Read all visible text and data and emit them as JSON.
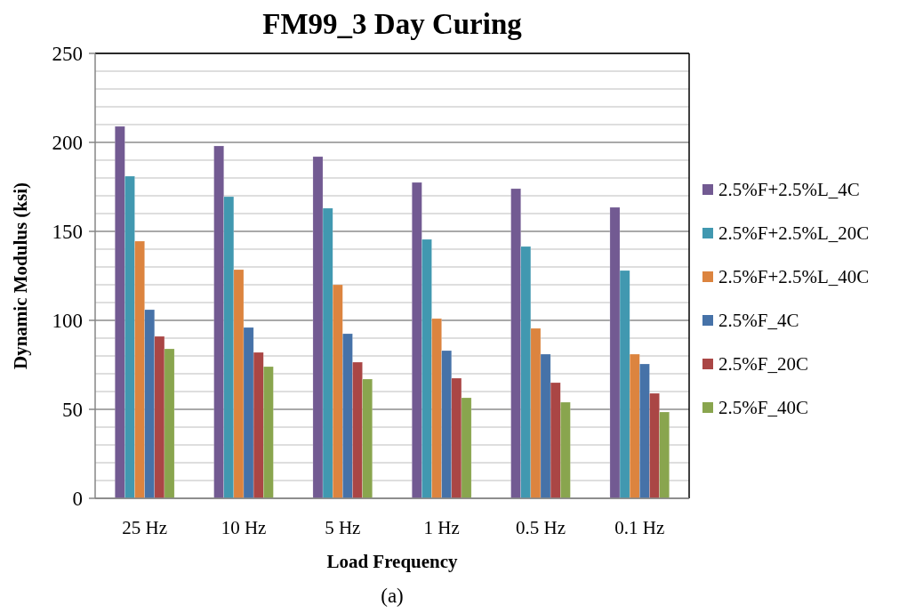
{
  "chart_data": {
    "type": "bar",
    "title": "FM99_3 Day Curing",
    "xlabel": "Load Frequency",
    "ylabel": "Dynamic Modulus (ksi)",
    "annotations": [
      "(a)"
    ],
    "categories": [
      "25 Hz",
      "10 Hz",
      "5 Hz",
      "1 Hz",
      "0.5 Hz",
      "0.1 Hz"
    ],
    "series": [
      {
        "name": "2.5%F+2.5%L_4C",
        "color": "#725a92",
        "values": [
          209,
          198,
          192,
          177.5,
          174,
          163.5
        ]
      },
      {
        "name": "2.5%F+2.5%L_20C",
        "color": "#4198b0",
        "values": [
          181,
          169.5,
          163,
          145.5,
          141.5,
          128
        ]
      },
      {
        "name": "2.5%F+2.5%L_40C",
        "color": "#dc843f",
        "values": [
          144.5,
          128.5,
          120,
          101,
          95.5,
          81
        ]
      },
      {
        "name": "2.5%F_4C",
        "color": "#4672a8",
        "values": [
          106,
          96,
          92.5,
          83,
          81,
          75.5
        ]
      },
      {
        "name": "2.5%F_20C",
        "color": "#aa4645",
        "values": [
          91,
          82,
          76.5,
          67.5,
          65,
          59
        ]
      },
      {
        "name": "2.5%F_40C",
        "color": "#89a54e",
        "values": [
          84,
          74,
          67,
          56.5,
          54,
          48.5
        ]
      }
    ],
    "ylim": [
      0,
      250
    ],
    "yticks": [
      0,
      {
        "value": 10,
        "label": null
      },
      {
        "value": 20,
        "label": null
      },
      {
        "value": 30,
        "label": null
      },
      {
        "value": 40,
        "label": null
      },
      50,
      {
        "value": 60,
        "label": null
      },
      {
        "value": 70,
        "label": null
      },
      {
        "value": 80,
        "label": null
      },
      {
        "value": 90,
        "label": null
      },
      100,
      {
        "value": 110,
        "label": null
      },
      {
        "value": 120,
        "label": null
      },
      {
        "value": 130,
        "label": null
      },
      {
        "value": 140,
        "label": null
      },
      150,
      {
        "value": 160,
        "label": null
      },
      {
        "value": 170,
        "label": null
      },
      {
        "value": 180,
        "label": null
      },
      {
        "value": 190,
        "label": null
      },
      200,
      {
        "value": 210,
        "label": null
      },
      {
        "value": 220,
        "label": null
      },
      {
        "value": 230,
        "label": null
      },
      {
        "value": 240,
        "label": null
      },
      250
    ],
    "grid": true,
    "legend": "right"
  }
}
